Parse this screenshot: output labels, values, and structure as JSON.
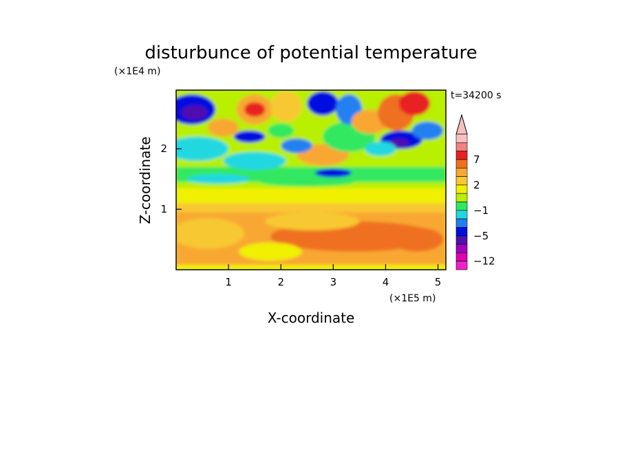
{
  "chart_data": {
    "type": "heatmap",
    "title": "disturbunce of potential temperature",
    "xlabel": "X-coordinate",
    "ylabel": "Z-coordinate",
    "x_unit": "(×1E5 m)",
    "y_unit": "(×1E4 m)",
    "time_label": "t=34200 s",
    "xlim": [
      0,
      5.15
    ],
    "ylim": [
      0,
      2.97
    ],
    "x_ticks": [
      "1",
      "2",
      "3",
      "4",
      "5"
    ],
    "y_ticks": [
      "1",
      "2"
    ],
    "colorbar": {
      "labels": [
        "7",
        "2",
        "−1",
        "−5",
        "−12"
      ],
      "levels_top_to_bottom": [
        11,
        9,
        7,
        5,
        3,
        2,
        1,
        0,
        -1,
        -2,
        -3,
        -5,
        -7,
        -9,
        -12
      ],
      "colors_top_to_bottom": [
        "#f7c0c0",
        "#f48080",
        "#e82020",
        "#f07020",
        "#f8a830",
        "#f8c830",
        "#f0f000",
        "#b8f000",
        "#30e860",
        "#20d8e0",
        "#2080f0",
        "#0010e0",
        "#5010b0",
        "#a000c0",
        "#e000b0",
        "#f020c8"
      ],
      "extend_max": true
    },
    "grid": false
  }
}
